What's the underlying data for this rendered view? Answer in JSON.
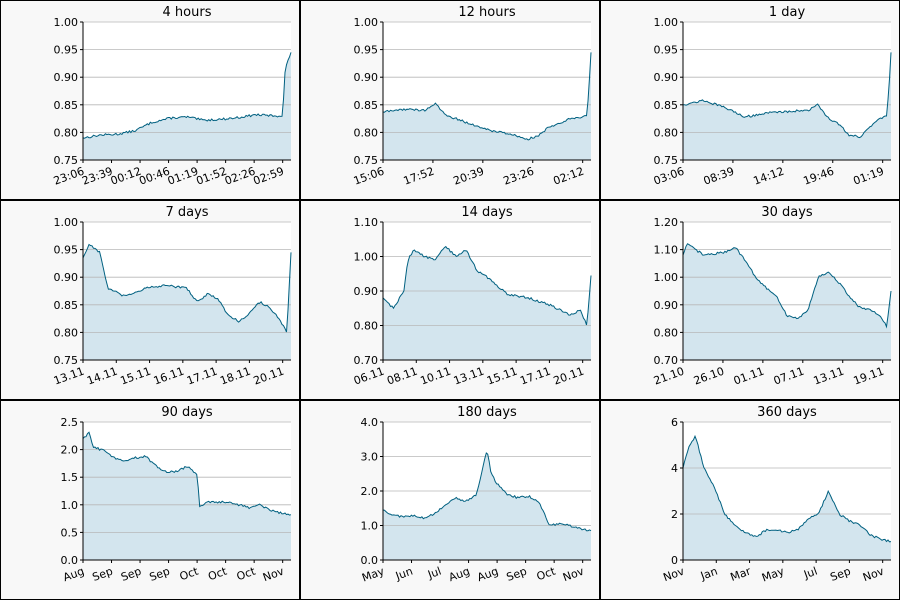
{
  "chart_data": [
    {
      "type": "area",
      "title": "4 hours",
      "ylim": [
        0.75,
        1.0
      ],
      "yticks": [
        0.75,
        0.8,
        0.85,
        0.9,
        0.95,
        1.0
      ],
      "ytick_labels": [
        "0.75",
        "0.80",
        "0.85",
        "0.90",
        "0.95",
        "1.00"
      ],
      "xtick_labels": [
        "23:06",
        "23:39",
        "00:12",
        "00:46",
        "01:19",
        "01:52",
        "02:26",
        "02:59"
      ],
      "grid": true,
      "series": [
        {
          "x": [
            0,
            0.08,
            0.17,
            0.25,
            0.33,
            0.42,
            0.5,
            0.58,
            0.67,
            0.75,
            0.83,
            0.92,
            0.96,
            0.97,
            0.98,
            1.0
          ],
          "values": [
            0.79,
            0.795,
            0.797,
            0.803,
            0.818,
            0.826,
            0.828,
            0.822,
            0.824,
            0.827,
            0.832,
            0.83,
            0.83,
            0.905,
            0.925,
            0.945
          ]
        }
      ]
    },
    {
      "type": "area",
      "title": "12 hours",
      "ylim": [
        0.75,
        1.0
      ],
      "yticks": [
        0.75,
        0.8,
        0.85,
        0.9,
        0.95,
        1.0
      ],
      "ytick_labels": [
        "0.75",
        "0.80",
        "0.85",
        "0.90",
        "0.95",
        "1.00"
      ],
      "xtick_labels": [
        "15:06",
        "17:52",
        "20:39",
        "23:26",
        "02:12"
      ],
      "grid": true,
      "series": [
        {
          "x": [
            0,
            0.1,
            0.2,
            0.25,
            0.3,
            0.4,
            0.5,
            0.6,
            0.7,
            0.75,
            0.8,
            0.9,
            0.95,
            0.98,
            0.99,
            1.0
          ],
          "values": [
            0.837,
            0.842,
            0.84,
            0.852,
            0.832,
            0.818,
            0.805,
            0.798,
            0.788,
            0.795,
            0.81,
            0.825,
            0.828,
            0.83,
            0.88,
            0.945
          ]
        }
      ]
    },
    {
      "type": "area",
      "title": "1 day",
      "ylim": [
        0.75,
        1.0
      ],
      "yticks": [
        0.75,
        0.8,
        0.85,
        0.9,
        0.95,
        1.0
      ],
      "ytick_labels": [
        "0.75",
        "0.80",
        "0.85",
        "0.90",
        "0.95",
        "1.00"
      ],
      "xtick_labels": [
        "03:06",
        "08:39",
        "14:12",
        "19:46",
        "01:19"
      ],
      "grid": true,
      "series": [
        {
          "x": [
            0,
            0.1,
            0.2,
            0.3,
            0.4,
            0.5,
            0.6,
            0.65,
            0.7,
            0.75,
            0.8,
            0.85,
            0.9,
            0.95,
            0.98,
            0.99,
            1.0
          ],
          "values": [
            0.85,
            0.858,
            0.845,
            0.828,
            0.835,
            0.838,
            0.84,
            0.85,
            0.825,
            0.815,
            0.795,
            0.792,
            0.81,
            0.825,
            0.83,
            0.88,
            0.945
          ]
        }
      ]
    },
    {
      "type": "area",
      "title": "7 days",
      "ylim": [
        0.75,
        1.0
      ],
      "yticks": [
        0.75,
        0.8,
        0.85,
        0.9,
        0.95,
        1.0
      ],
      "ytick_labels": [
        "0.75",
        "0.80",
        "0.85",
        "0.90",
        "0.95",
        "1.00"
      ],
      "xtick_labels": [
        "13.11",
        "14.11",
        "15.11",
        "16.11",
        "17.11",
        "18.11",
        "20.11"
      ],
      "grid": true,
      "series": [
        {
          "x": [
            0,
            0.03,
            0.08,
            0.12,
            0.2,
            0.3,
            0.4,
            0.5,
            0.55,
            0.6,
            0.65,
            0.7,
            0.75,
            0.8,
            0.85,
            0.9,
            0.95,
            0.98,
            1.0
          ],
          "values": [
            0.935,
            0.96,
            0.945,
            0.88,
            0.865,
            0.88,
            0.885,
            0.88,
            0.855,
            0.87,
            0.86,
            0.83,
            0.82,
            0.835,
            0.855,
            0.845,
            0.82,
            0.8,
            0.945
          ]
        }
      ]
    },
    {
      "type": "area",
      "title": "14 days",
      "ylim": [
        0.7,
        1.1
      ],
      "yticks": [
        0.7,
        0.8,
        0.9,
        1.0,
        1.1
      ],
      "ytick_labels": [
        "0.70",
        "0.80",
        "0.90",
        "1.00",
        "1.10"
      ],
      "xtick_labels": [
        "06.11",
        "08.11",
        "10.11",
        "13.11",
        "15.11",
        "17.11",
        "20.11"
      ],
      "grid": true,
      "series": [
        {
          "x": [
            0,
            0.05,
            0.1,
            0.12,
            0.15,
            0.2,
            0.25,
            0.3,
            0.35,
            0.4,
            0.45,
            0.5,
            0.6,
            0.7,
            0.8,
            0.9,
            0.95,
            0.98,
            1.0
          ],
          "values": [
            0.88,
            0.85,
            0.9,
            0.99,
            1.02,
            1.0,
            0.99,
            1.03,
            1.0,
            1.02,
            0.96,
            0.94,
            0.89,
            0.88,
            0.86,
            0.83,
            0.845,
            0.8,
            0.945
          ]
        }
      ]
    },
    {
      "type": "area",
      "title": "30 days",
      "ylim": [
        0.7,
        1.2
      ],
      "yticks": [
        0.7,
        0.8,
        0.9,
        1.0,
        1.1,
        1.2
      ],
      "ytick_labels": [
        "0.70",
        "0.80",
        "0.90",
        "1.00",
        "1.10",
        "1.20"
      ],
      "xtick_labels": [
        "21.10",
        "26.10",
        "01.11",
        "07.11",
        "13.11",
        "19.11"
      ],
      "grid": true,
      "series": [
        {
          "x": [
            0,
            0.02,
            0.1,
            0.2,
            0.25,
            0.3,
            0.35,
            0.4,
            0.45,
            0.5,
            0.55,
            0.6,
            0.65,
            0.7,
            0.75,
            0.8,
            0.85,
            0.9,
            0.95,
            0.98,
            1.0
          ],
          "values": [
            1.08,
            1.12,
            1.08,
            1.09,
            1.11,
            1.06,
            1.0,
            0.96,
            0.93,
            0.86,
            0.85,
            0.88,
            1.0,
            1.02,
            0.98,
            0.93,
            0.89,
            0.88,
            0.86,
            0.82,
            0.95
          ]
        }
      ]
    },
    {
      "type": "area",
      "title": "90 days",
      "ylim": [
        0.0,
        2.5
      ],
      "yticks": [
        0.0,
        0.5,
        1.0,
        1.5,
        2.0,
        2.5
      ],
      "ytick_labels": [
        "0.0",
        "0.5",
        "1.0",
        "1.5",
        "2.0",
        "2.5"
      ],
      "xtick_labels": [
        "Aug",
        "Sep",
        "Sep",
        "Sep",
        "Oct",
        "Oct",
        "Oct",
        "Nov"
      ],
      "grid": true,
      "series": [
        {
          "x": [
            0,
            0.03,
            0.05,
            0.1,
            0.15,
            0.2,
            0.25,
            0.3,
            0.35,
            0.4,
            0.45,
            0.5,
            0.55,
            0.56,
            0.6,
            0.7,
            0.8,
            0.85,
            0.9,
            0.95,
            1.0
          ],
          "values": [
            2.2,
            2.3,
            2.05,
            1.98,
            1.85,
            1.8,
            1.85,
            1.88,
            1.7,
            1.6,
            1.6,
            1.7,
            1.55,
            0.95,
            1.05,
            1.05,
            0.95,
            1.0,
            0.9,
            0.85,
            0.82
          ]
        }
      ]
    },
    {
      "type": "area",
      "title": "180 days",
      "ylim": [
        0.0,
        4.0
      ],
      "yticks": [
        0.0,
        1.0,
        2.0,
        3.0,
        4.0
      ],
      "ytick_labels": [
        "0.0",
        "1.0",
        "2.0",
        "3.0",
        "4.0"
      ],
      "xtick_labels": [
        "May",
        "Jun",
        "Jul",
        "Aug",
        "Aug",
        "Sep",
        "Oct",
        "Nov"
      ],
      "grid": true,
      "series": [
        {
          "x": [
            0,
            0.05,
            0.1,
            0.15,
            0.2,
            0.25,
            0.3,
            0.35,
            0.4,
            0.45,
            0.5,
            0.52,
            0.55,
            0.6,
            0.65,
            0.7,
            0.75,
            0.8,
            0.85,
            0.9,
            0.95,
            1.0
          ],
          "values": [
            1.45,
            1.3,
            1.25,
            1.3,
            1.2,
            1.35,
            1.6,
            1.8,
            1.7,
            1.9,
            3.2,
            2.5,
            2.2,
            1.9,
            1.8,
            1.85,
            1.7,
            1.0,
            1.05,
            1.0,
            0.9,
            0.85
          ]
        }
      ]
    },
    {
      "type": "area",
      "title": "360 days",
      "ylim": [
        0,
        6
      ],
      "yticks": [
        0,
        2,
        4,
        6
      ],
      "ytick_labels": [
        "0",
        "2",
        "4",
        "6"
      ],
      "xtick_labels": [
        "Nov",
        "Jan",
        "Mar",
        "May",
        "Jul",
        "Sep",
        "Nov"
      ],
      "grid": true,
      "series": [
        {
          "x": [
            0,
            0.03,
            0.06,
            0.1,
            0.15,
            0.2,
            0.25,
            0.3,
            0.35,
            0.4,
            0.45,
            0.5,
            0.55,
            0.6,
            0.65,
            0.7,
            0.75,
            0.8,
            0.85,
            0.9,
            0.95,
            1.0
          ],
          "values": [
            4.0,
            5.0,
            5.4,
            4.0,
            3.2,
            2.0,
            1.5,
            1.2,
            1.0,
            1.3,
            1.3,
            1.2,
            1.3,
            1.8,
            2.0,
            3.0,
            2.0,
            1.7,
            1.5,
            1.1,
            0.9,
            0.8
          ]
        }
      ]
    }
  ],
  "colors": {
    "line": "#006080",
    "fill": "#d3e5ee",
    "grid": "#b8b8b8",
    "panel_bg": "#f8f8f8",
    "plot_bg": "#ffffff"
  }
}
